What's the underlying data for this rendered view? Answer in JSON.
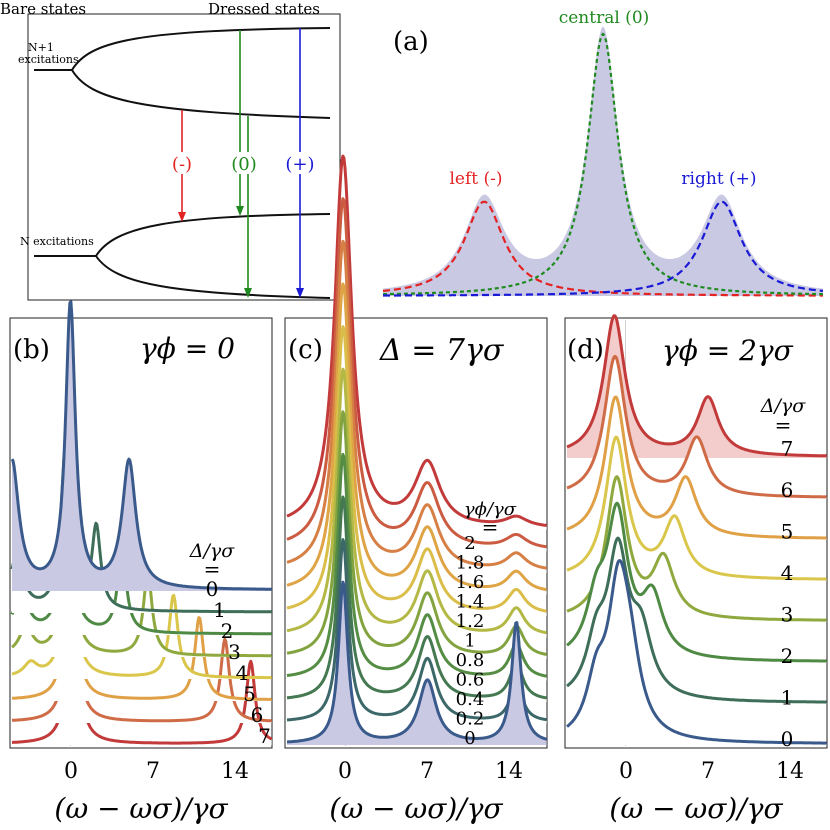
{
  "figure": {
    "panel_a": {
      "label": "(a)",
      "bare_title": "Bare states",
      "dressed_title": "Dressed states",
      "level_upper_label": [
        "N+1",
        "excitations"
      ],
      "level_lower_label": "N excitations",
      "transitions": [
        {
          "label": "(-)",
          "color": "#e32222"
        },
        {
          "label": "(0)",
          "color": "#1f8a1f"
        },
        {
          "label": "(+)",
          "color": "#1a1ad6"
        }
      ],
      "spectrum_labels": {
        "left": "left (-)",
        "central": "central (0)",
        "right": "right (+)"
      },
      "colors": {
        "left": "#e32222",
        "central": "#1f8a1f",
        "right": "#1a1ad6",
        "fill": "#c9c9e4"
      }
    },
    "panel_b": {
      "label": "(b)",
      "title": "γϕ = 0",
      "param_label": "Δ/γσ",
      "equals": "=",
      "series_labels": [
        "0",
        "1",
        "2",
        "3",
        "4",
        "5",
        "6",
        "7"
      ],
      "xticks": [
        "0",
        "7",
        "14"
      ],
      "xlabel": "(ω − ωσ)/γσ"
    },
    "panel_c": {
      "label": "(c)",
      "title": "Δ = 7γσ",
      "param_label": "γϕ/γσ",
      "equals": "=",
      "series_labels": [
        "0",
        "0.2",
        "0.4",
        "0.6",
        "0.8",
        "1",
        "1.2",
        "1.4",
        "1.6",
        "1.8",
        "2"
      ],
      "xticks": [
        "0",
        "7",
        "14"
      ],
      "xlabel": "(ω − ωσ)/γσ"
    },
    "panel_d": {
      "label": "(d)",
      "title": "γϕ = 2γσ",
      "param_label": "Δ/γσ",
      "equals": "=",
      "series_labels": [
        "0",
        "1",
        "2",
        "3",
        "4",
        "5",
        "6",
        "7"
      ],
      "xticks": [
        "0",
        "7",
        "14"
      ],
      "xlabel": "(ω − ωσ)/γσ"
    },
    "palette": [
      "#3b5a8c",
      "#3e6e5a",
      "#4f8a45",
      "#8fa93f",
      "#d9c64a",
      "#e0a046",
      "#cf6b46",
      "#c23a3a"
    ]
  }
}
